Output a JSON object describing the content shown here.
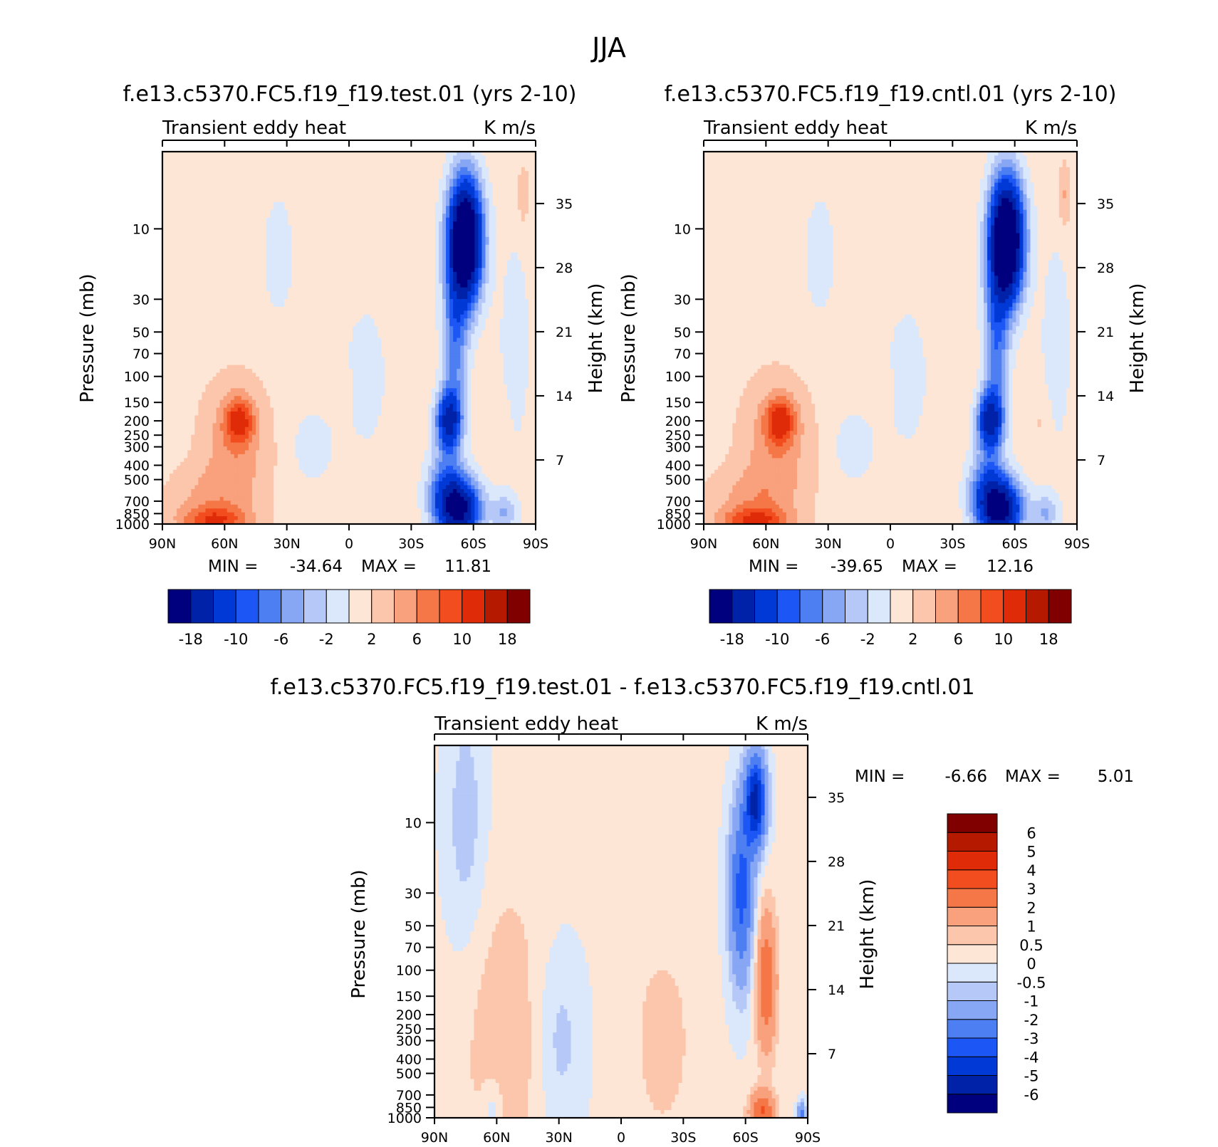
{
  "chart_data": {
    "type": "heatmap",
    "title": "JJA",
    "panels": [
      {
        "id": "test",
        "run_title": "f.e13.c5370.FC5.f19_f19.test.01 (yrs 2-10)",
        "variable": "Transient eddy heat",
        "units": "K m/s",
        "ylabel": "Pressure (mb)",
        "ylabel_right": "Height (km)",
        "min_label": "MIN =",
        "max_label": "MAX =",
        "min": "-34.64",
        "max": "11.81",
        "field": "mean",
        "levels_key": "main"
      },
      {
        "id": "cntl",
        "run_title": "f.e13.c5370.FC5.f19_f19.cntl.01 (yrs 2-10)",
        "variable": "Transient eddy heat",
        "units": "K m/s",
        "ylabel": "Pressure (mb)",
        "ylabel_right": "Height (km)",
        "min_label": "MIN =",
        "max_label": "MAX =",
        "min": "-39.65",
        "max": "12.16",
        "field": "mean_cntl",
        "levels_key": "main"
      },
      {
        "id": "diff",
        "run_title": "f.e13.c5370.FC5.f19_f19.test.01 - f.e13.c5370.FC5.f19_f19.cntl.01",
        "variable": "Transient eddy heat",
        "units": "K m/s",
        "ylabel": "Pressure (mb)",
        "ylabel_right": "Height (km)",
        "min_label": "MIN =",
        "max_label": "MAX =",
        "min": "-6.66",
        "max": "5.01",
        "field": "diff",
        "levels_key": "diff"
      }
    ],
    "x_ticks": [
      "90N",
      "60N",
      "30N",
      "0",
      "30S",
      "60S",
      "90S"
    ],
    "x_range": [
      90,
      -90
    ],
    "pressure_ticks": [
      "10",
      "30",
      "50",
      "70",
      "100",
      "150",
      "200",
      "250",
      "300",
      "400",
      "500",
      "700",
      "850",
      "1000"
    ],
    "pressure_range": [
      3,
      1000
    ],
    "height_ticks": [
      "35",
      "28",
      "21",
      "14",
      "7"
    ],
    "levels": {
      "main": [
        -18,
        -14,
        -10,
        -8,
        -6,
        -4,
        -2,
        0,
        2,
        4,
        6,
        8,
        10,
        14,
        18
      ],
      "diff": [
        -6,
        -5,
        -4,
        -3,
        -2,
        -1,
        -0.5,
        0,
        0.5,
        1,
        2,
        3,
        4,
        5,
        6
      ]
    },
    "colorbar_labels": {
      "main": [
        "-18",
        "-10",
        "-6",
        "-2",
        "2",
        "6",
        "10",
        "18"
      ],
      "diff": [
        "6",
        "5",
        "4",
        "3",
        "2",
        "1",
        "0.5",
        "0",
        "-0.5",
        "-1",
        "-2",
        "-3",
        "-4",
        "-5",
        "-6"
      ]
    },
    "colors": [
      "#00007f",
      "#0022a8",
      "#0039d6",
      "#1c56f5",
      "#4d7ef2",
      "#87a6f4",
      "#b5c8f7",
      "#dbe8fb",
      "#fde6d6",
      "#fbc6ab",
      "#f8a17c",
      "#f57747",
      "#f24d1f",
      "#e02b08",
      "#b51a00",
      "#800000"
    ]
  }
}
